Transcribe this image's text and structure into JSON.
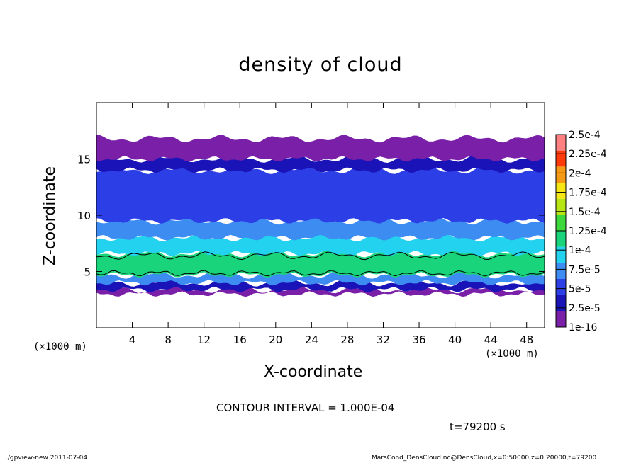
{
  "chart_data": {
    "type": "heatmap",
    "title": "density of cloud",
    "xlabel": "X-coordinate",
    "ylabel": "Z-coordinate",
    "x_unit": "(×1000 m)",
    "z_unit": "(×1000 m)",
    "xlim": [
      0,
      50
    ],
    "ylim": [
      0,
      20
    ],
    "x_ticks": [
      4,
      8,
      12,
      16,
      20,
      24,
      28,
      32,
      36,
      40,
      44,
      48
    ],
    "y_ticks": [
      5,
      10,
      15
    ],
    "colorbar": {
      "labels": [
        "1e-16",
        "2.5e-5",
        "5e-5",
        "7.5e-5",
        "1e-4",
        "1.25e-4",
        "1.5e-4",
        "1.75e-4",
        "2e-4",
        "2.25e-4",
        "2.5e-4"
      ],
      "colors": [
        "#7a1fa8",
        "#1a13b8",
        "#2c3fe6",
        "#3d8cf2",
        "#22d2ee",
        "#19d47a",
        "#3cd83c",
        "#b8e614",
        "#f5e614",
        "#f59a14",
        "#ff3a0a",
        "#ff8080"
      ]
    },
    "layers": [
      {
        "zmin": 3.0,
        "zmax": 3.4,
        "level": 0
      },
      {
        "zmin": 3.4,
        "zmax": 4.0,
        "level": 1
      },
      {
        "zmin": 4.0,
        "zmax": 4.7,
        "level": 3
      },
      {
        "zmin": 4.7,
        "zmax": 6.6,
        "level": 5
      },
      {
        "zmin": 6.6,
        "zmax": 8.0,
        "level": 4
      },
      {
        "zmin": 8.0,
        "zmax": 9.5,
        "level": 3
      },
      {
        "zmin": 9.5,
        "zmax": 14.0,
        "level": 2
      },
      {
        "zmin": 14.0,
        "zmax": 15.0,
        "level": 1
      },
      {
        "zmin": 15.0,
        "zmax": 16.8,
        "level": 0
      }
    ],
    "contour_level": 0.0001
  },
  "contour_interval_text": "CONTOUR INTERVAL = 1.000E-04",
  "time_text": "t=79200 s",
  "footer_left": "./gpview-new  2011-07-04",
  "footer_right": "MarsCond_DensCloud.nc@DensCloud,x=0:50000,z=0:20000,t=79200"
}
